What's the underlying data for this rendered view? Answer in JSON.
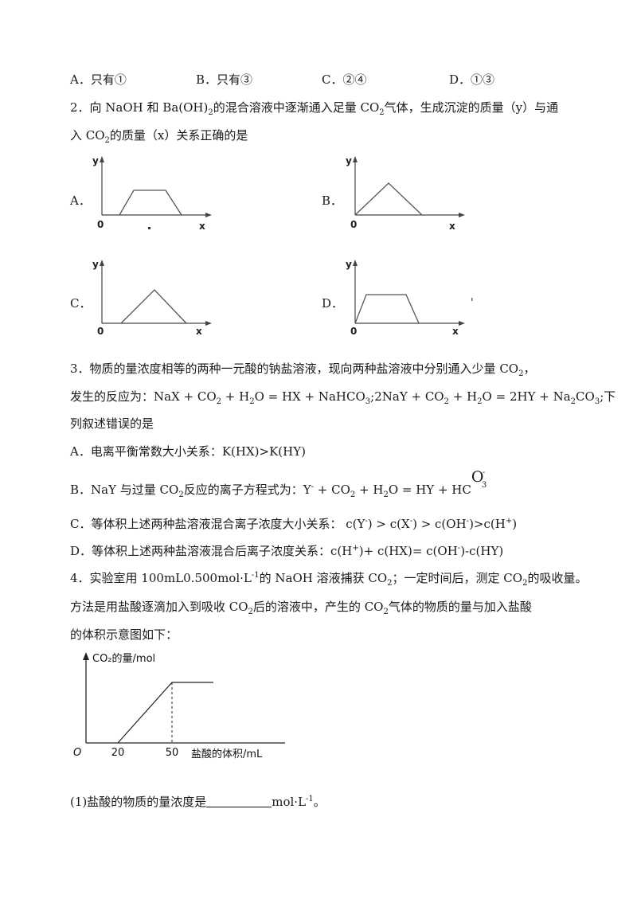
{
  "q1_options": [
    {
      "label": "A．只有①"
    },
    {
      "label": "B．只有③"
    },
    {
      "label": "C．②④"
    },
    {
      "label": "D．①③"
    }
  ],
  "q2": {
    "stem_line1_a": "2．向 NaOH 和 Ba(OH)",
    "stem_line1_b": "的混合溶液中逐渐通入足量 CO",
    "stem_line1_c": "气体，生成沉淀的质量（y）与通",
    "stem_line2_a": "入 CO",
    "stem_line2_b": "的质量（x）关系正确的是",
    "sub2": "2",
    "options": [
      "A．",
      "B．",
      "C．",
      "D．"
    ],
    "axis_y": "y",
    "axis_x": "x",
    "origin": "0",
    "graphs": [
      {
        "shape": "trapezoid",
        "points_frac": [
          [
            0.18,
            0
          ],
          [
            0.3,
            0.6
          ],
          [
            0.6,
            0.6
          ],
          [
            0.75,
            0
          ]
        ]
      },
      {
        "shape": "triangle-from-origin",
        "points_frac": [
          [
            0,
            0
          ],
          [
            0.3,
            0.58
          ],
          [
            0.62,
            0
          ]
        ]
      },
      {
        "shape": "triangle",
        "points_frac": [
          [
            0.18,
            0
          ],
          [
            0.48,
            0.55
          ],
          [
            0.78,
            0
          ]
        ]
      },
      {
        "shape": "trapezoid-from-origin",
        "points_frac": [
          [
            0,
            0
          ],
          [
            0.1,
            0.6
          ],
          [
            0.42,
            0.6
          ],
          [
            0.56,
            0
          ]
        ]
      }
    ]
  },
  "q3": {
    "stem_line1": "3．物质的量浓度相等的两种一元酸的钠盐溶液，现向两种盐溶液中分别通入少量 CO",
    "stem_line1_end": "，",
    "stem_line2_a": "发生的反应为：NaX + CO",
    "stem_line2_b": " + H",
    "stem_line2_c": "O = HX + NaHCO",
    "stem_line2_d": ";2NaY + CO",
    "stem_line2_e": " + H",
    "stem_line2_f": "O = 2HY + Na",
    "stem_line2_g": "CO",
    "stem_line2_h": ";下",
    "sub3": "3",
    "stem_line3": "列叙述错误的是",
    "optA": "A．电离平衡常数大小关系：K(HX)>K(HY)",
    "optB_a": "B．NaY 与过量 CO",
    "optB_b": "反应的离子方程式为：Y",
    "optB_c": " + CO",
    "optB_d": " + H",
    "optB_e": "O = HY + HC",
    "optB_O": "O",
    "sup_minus": "-",
    "optC_a": "C．等体积上述两种盐溶液混合离子浓度大小关系：  c(Y",
    "optC_b": ") > c(X",
    "optC_c": ") > c(OH",
    "optC_d": ")>c(H",
    "optC_e": ")",
    "sup_plus": "+",
    "optD_a": "D．等体积上述两种盐溶液混合后离子浓度关系：c(H",
    "optD_b": ")+ c(HX)= c(OH",
    "optD_c": ")-c(HY)"
  },
  "q4": {
    "line1_a": "4．实验室用 100mL0.500mol·L",
    "sup_m1": "-1",
    "line1_b": "的 NaOH 溶液捕获 CO",
    "line1_c": "；一定时间后，测定 CO",
    "line1_d": "的吸收量。",
    "line2_a": "方法是用盐酸逐滴加入到吸收 CO",
    "line2_b": "后的溶液中，产生的 CO",
    "line2_c": "气体的物质的量与加入盐酸",
    "line3": "的体积示意图如下：",
    "sub1_a": "(1)盐酸的物质的量浓度是",
    "sub1_b": "mol·L",
    "sub1_c": "。"
  },
  "chart_data": {
    "type": "line",
    "title": "",
    "ylabel": "CO₂的量/mol",
    "xlabel": "盐酸的体积/mL",
    "origin_label": "O",
    "x_ticks": [
      "20",
      "50"
    ],
    "series": [
      {
        "x": [
          0,
          20,
          50,
          70
        ],
        "y": [
          0,
          0,
          1,
          1
        ]
      }
    ],
    "annotations": [
      {
        "type": "dashed-vertical",
        "x": 50
      }
    ]
  }
}
